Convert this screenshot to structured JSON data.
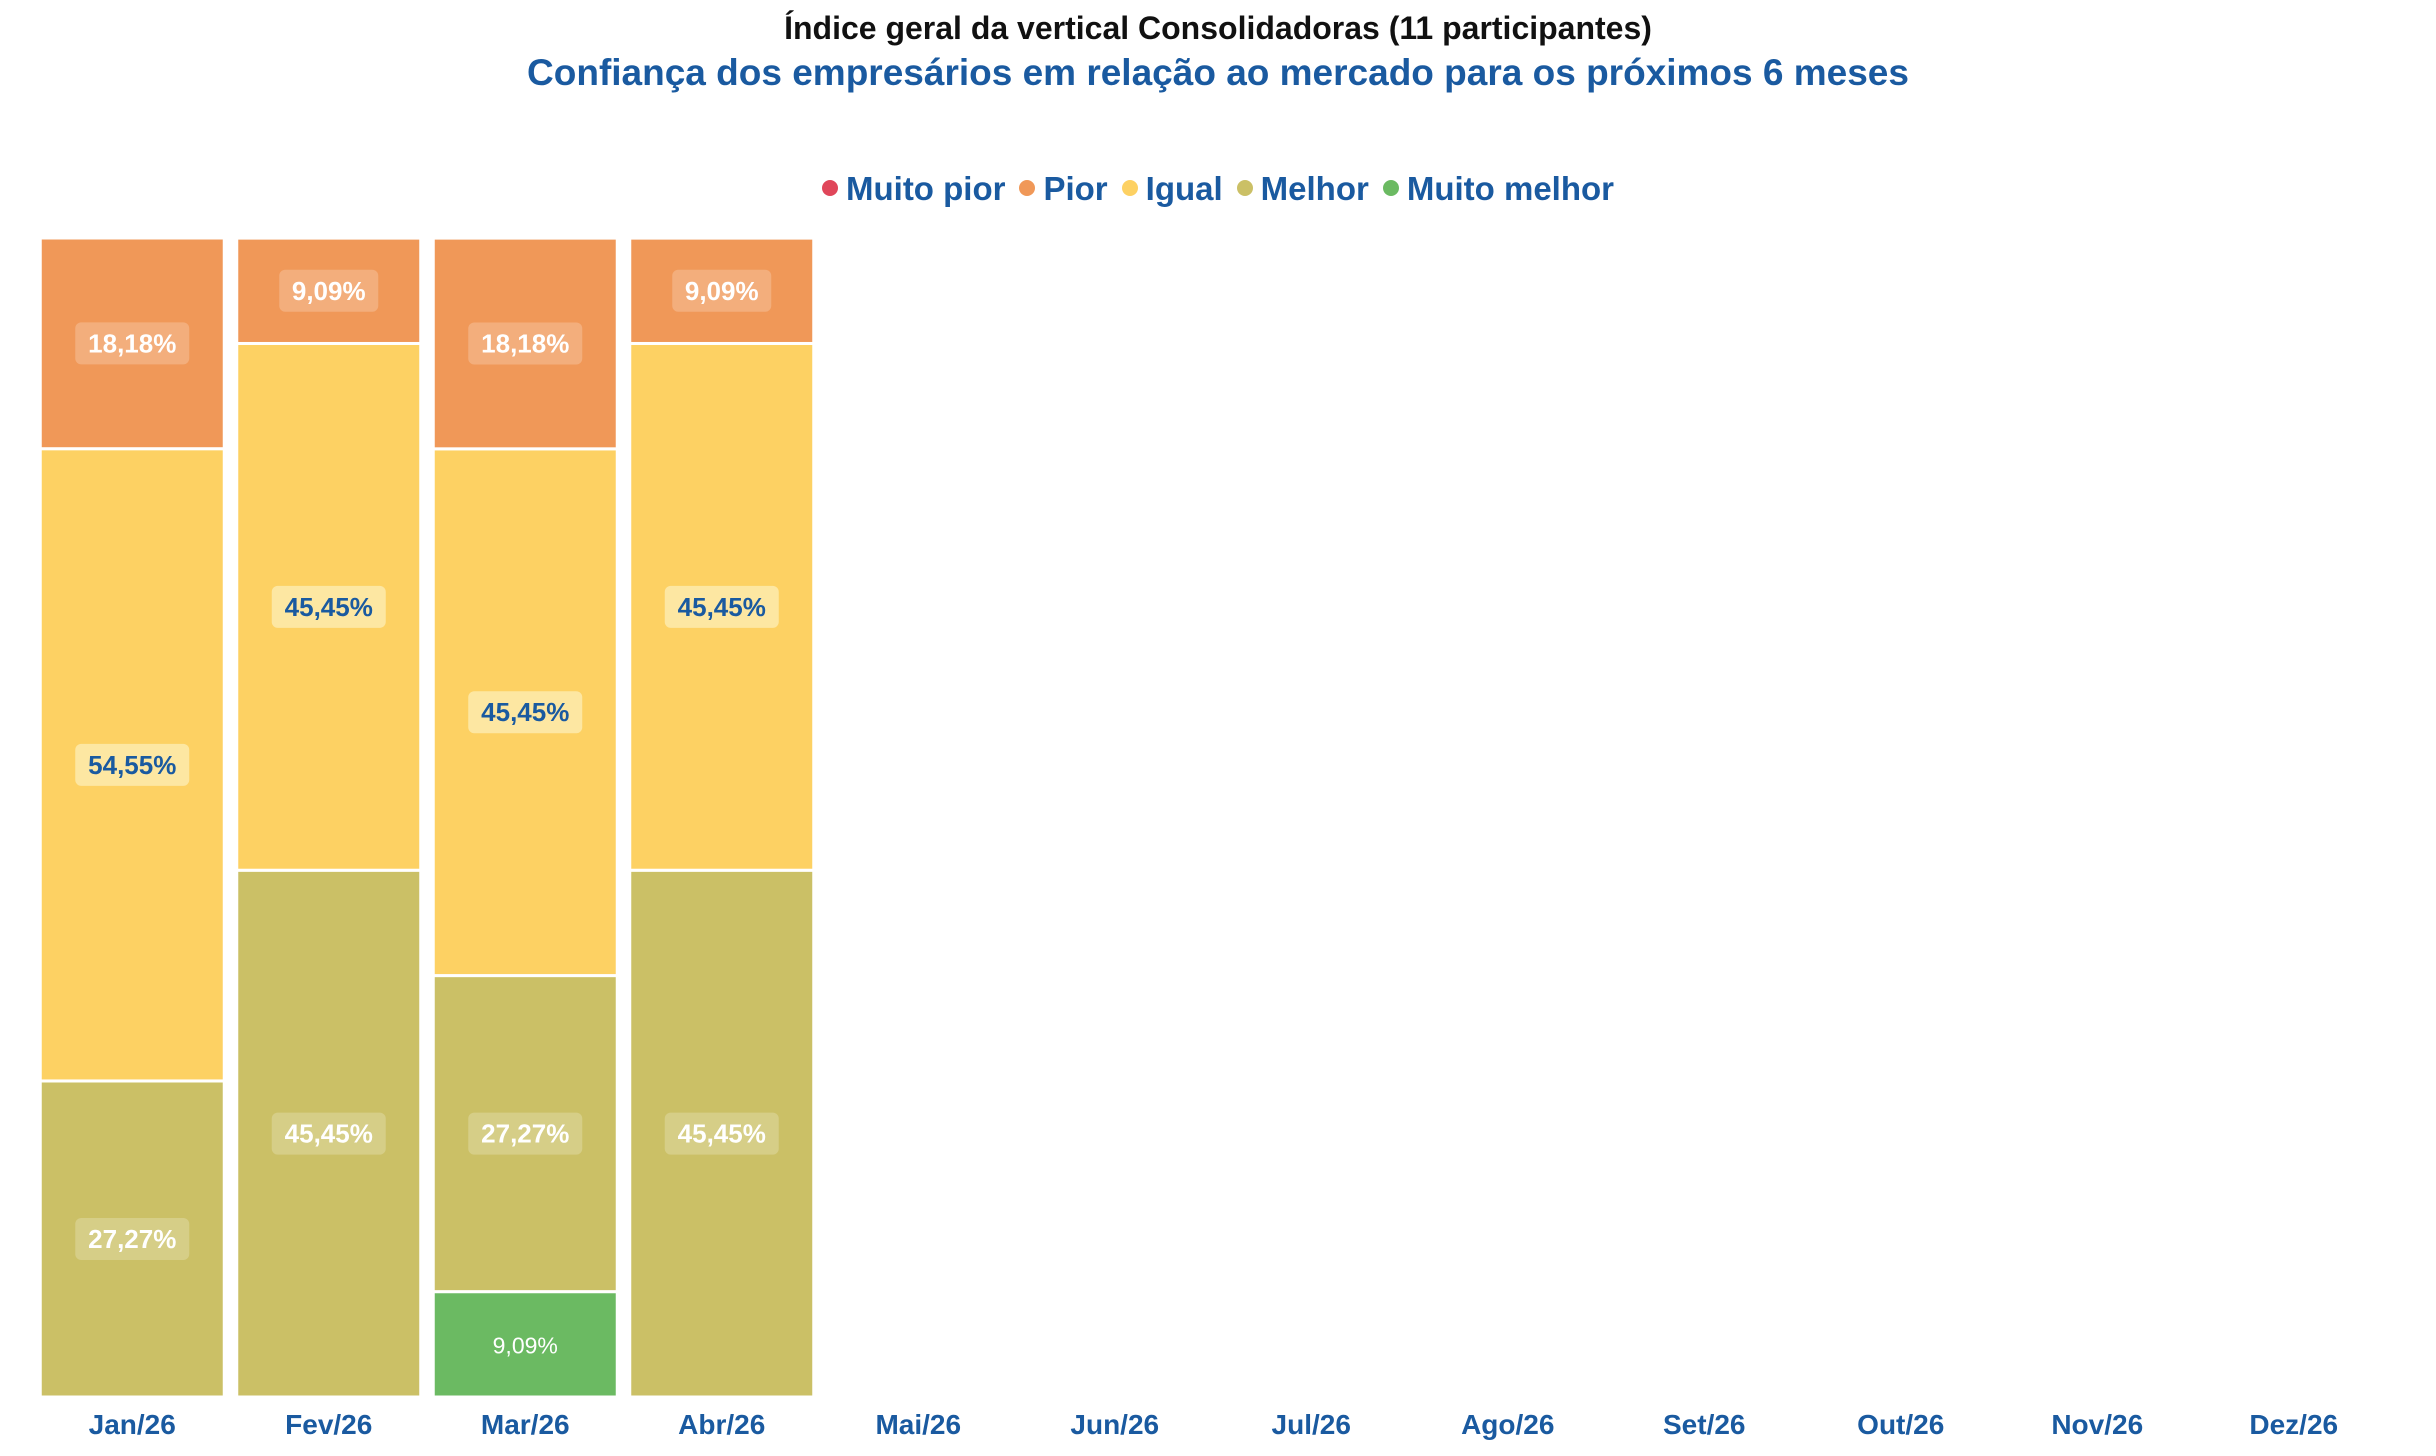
{
  "chart_data": {
    "type": "bar",
    "stacked": true,
    "normalized": true,
    "title": "Índice geral da vertical Consolidadoras  (11 participantes)",
    "subtitle": "Confiança dos empresários em relação ao mercado para os próximos 6 meses",
    "categories": [
      "Jan/26",
      "Fev/26",
      "Mar/26",
      "Abr/26",
      "Mai/26",
      "Jun/26",
      "Jul/26",
      "Ago/26",
      "Set/26",
      "Out/26",
      "Nov/26",
      "Dez/26"
    ],
    "legend_position": "top-center",
    "grid": false,
    "ylim": [
      0,
      100
    ],
    "series": [
      {
        "name": "Muito pior",
        "color": "#e0465a",
        "values": [
          null,
          null,
          null,
          null,
          null,
          null,
          null,
          null,
          null,
          null,
          null,
          null
        ],
        "labels": [
          "",
          "",
          "",
          "",
          "",
          "",
          "",
          "",
          "",
          "",
          "",
          ""
        ]
      },
      {
        "name": "Pior",
        "color": "#f09858",
        "values": [
          18.18,
          9.09,
          18.18,
          9.09,
          null,
          null,
          null,
          null,
          null,
          null,
          null,
          null
        ],
        "labels": [
          "18,18%",
          "9,09%",
          "18,18%",
          "9,09%",
          "",
          "",
          "",
          "",
          "",
          "",
          "",
          ""
        ]
      },
      {
        "name": "Igual",
        "color": "#fdd163",
        "values": [
          54.55,
          45.45,
          45.45,
          45.45,
          null,
          null,
          null,
          null,
          null,
          null,
          null,
          null
        ],
        "labels": [
          "54,55%",
          "45,45%",
          "45,45%",
          "45,45%",
          "",
          "",
          "",
          "",
          "",
          "",
          "",
          ""
        ]
      },
      {
        "name": "Melhor",
        "color": "#cbc066",
        "values": [
          27.27,
          45.45,
          27.27,
          45.45,
          null,
          null,
          null,
          null,
          null,
          null,
          null,
          null
        ],
        "labels": [
          "27,27%",
          "45,45%",
          "27,27%",
          "45,45%",
          "",
          "",
          "",
          "",
          "",
          "",
          "",
          ""
        ]
      },
      {
        "name": "Muito melhor",
        "color": "#6bba62",
        "values": [
          null,
          null,
          9.09,
          null,
          null,
          null,
          null,
          null,
          null,
          null,
          null,
          null
        ],
        "labels": [
          "",
          "",
          "9,09%",
          "",
          "",
          "",
          "",
          "",
          "",
          "",
          "",
          ""
        ]
      }
    ]
  },
  "colors": {
    "title": "#111111",
    "accent": "#1a5aa0",
    "label_light": "#ffffff",
    "label_dark": "#1a5aa0"
  }
}
